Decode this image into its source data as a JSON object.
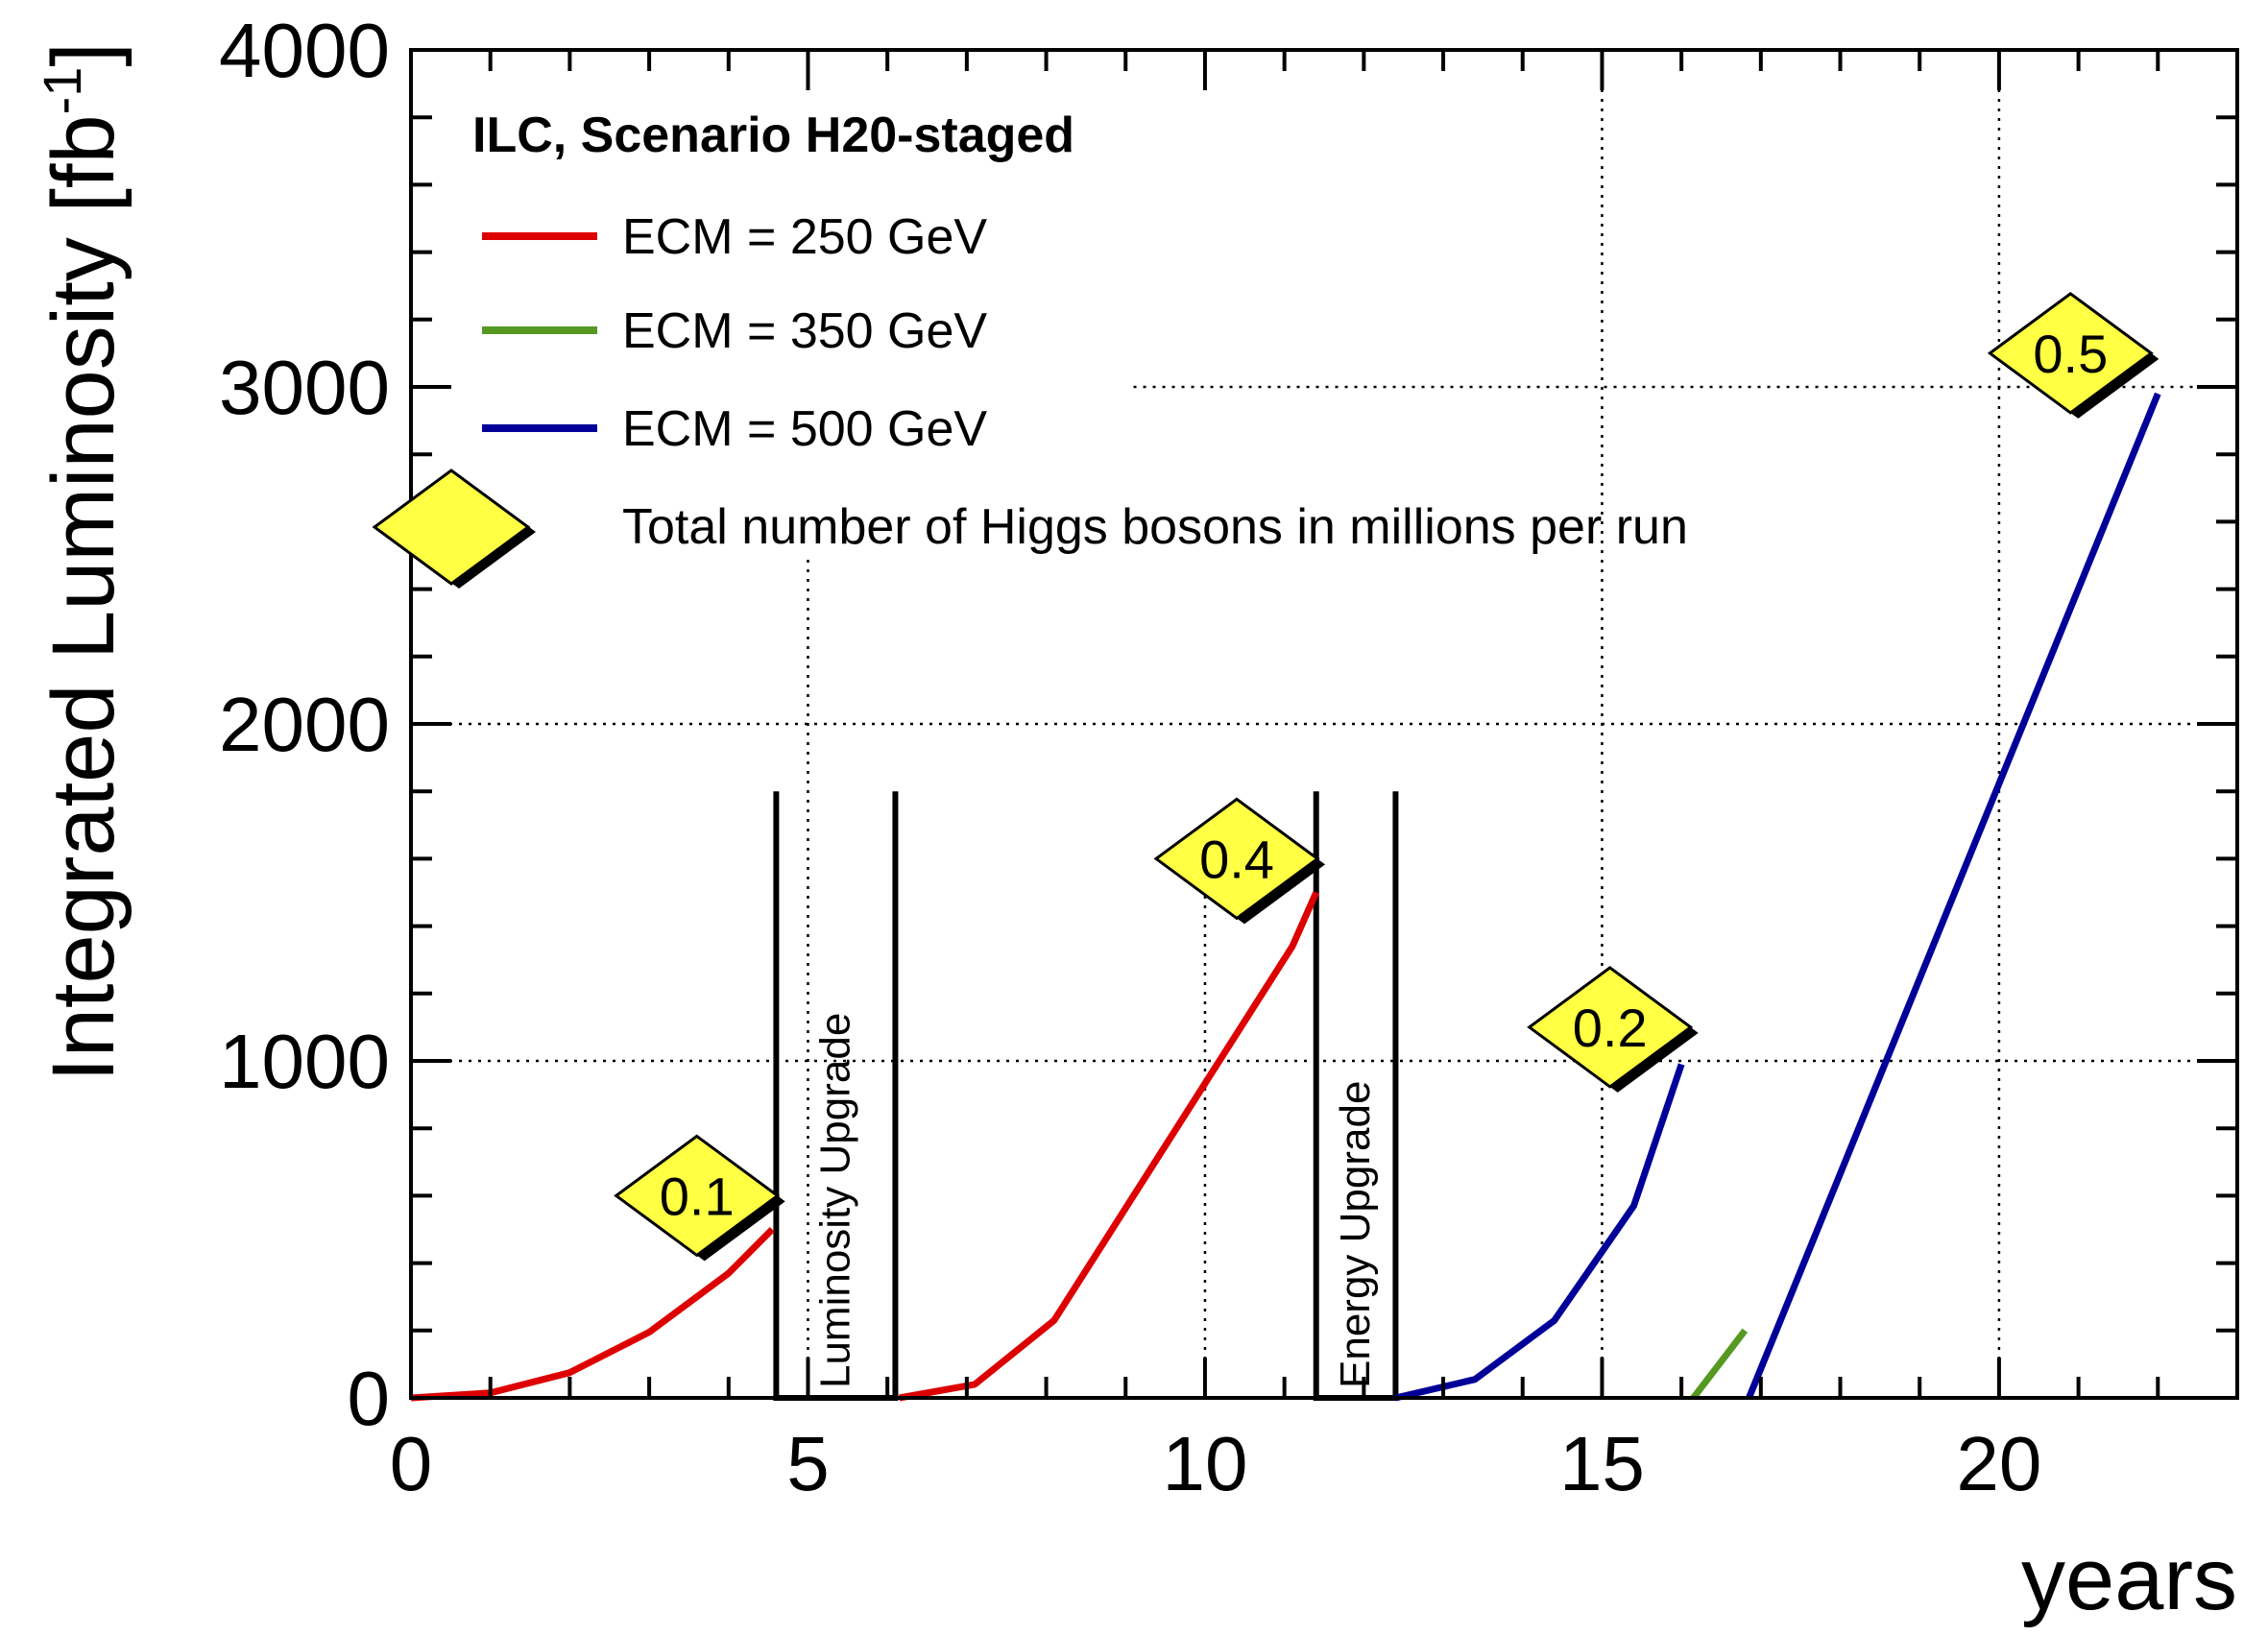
{
  "chart_data": {
    "type": "line",
    "legend": {
      "title": "ILC, Scenario H20-staged",
      "entries": [
        {
          "label": "ECM = 250 GeV",
          "color": "#dd0000"
        },
        {
          "label": "ECM = 350 GeV",
          "color": "#559922"
        },
        {
          "label": "ECM = 500 GeV",
          "color": "#000099"
        }
      ],
      "marker_label": "Total number of Higgs bosons in millions per run",
      "placement": "top-left"
    },
    "xlabel": "years",
    "ylabel": "Integrated Luminosity",
    "ylabel_unit": "[fb",
    "ylabel_unit_exp": "-1",
    "ylabel_unit_close": "]",
    "xlim": [
      0,
      23
    ],
    "ylim": [
      0,
      4000
    ],
    "x_ticks": [
      "0",
      "5",
      "10",
      "15",
      "20"
    ],
    "y_ticks": [
      "0",
      "1000",
      "2000",
      "3000",
      "4000"
    ],
    "grid": "dotted",
    "series": [
      {
        "name": "ECM = 250 GeV",
        "color": "#dd0000",
        "x": [
          0,
          1,
          2,
          3,
          4,
          4.55
        ],
        "y": [
          0,
          15,
          75,
          195,
          370,
          500
        ]
      },
      {
        "name": "ECM = 250 GeV",
        "color": "#dd0000",
        "x": [
          6.15,
          7.1,
          8.1,
          9.1,
          10.1,
          11.1,
          11.4
        ],
        "y": [
          0,
          40,
          230,
          600,
          970,
          1340,
          1500
        ]
      },
      {
        "name": "ECM = 500 GeV",
        "color": "#000099",
        "x": [
          12.4,
          13.4,
          14.4,
          15.4,
          16.0
        ],
        "y": [
          0,
          55,
          230,
          570,
          990
        ]
      },
      {
        "name": "ECM = 350 GeV",
        "color": "#559922",
        "x": [
          16.15,
          16.8
        ],
        "y": [
          0,
          200
        ]
      },
      {
        "name": "ECM = 500 GeV",
        "color": "#000099",
        "x": [
          16.85,
          22.0
        ],
        "y": [
          0,
          2980
        ]
      }
    ],
    "annotations": [
      {
        "text": "0.1",
        "x": 3.6,
        "y": 600
      },
      {
        "text": "0.4",
        "x": 10.4,
        "y": 1600
      },
      {
        "text": "0.2",
        "x": 15.1,
        "y": 1100
      },
      {
        "text": "0.5",
        "x": 20.9,
        "y": 3100
      }
    ],
    "upgrades": [
      {
        "label": "Luminosity Upgrade",
        "x_start": 4.6,
        "x_end": 6.1,
        "y_top": 1800
      },
      {
        "label": "Energy Upgrade",
        "x_start": 11.4,
        "x_end": 12.4,
        "y_top": 1800
      }
    ],
    "grid_segments": [
      {
        "axis": "v",
        "value": 5,
        "from": 0,
        "to": 2500
      },
      {
        "axis": "v",
        "value": 10,
        "from": 0,
        "to": 1700
      },
      {
        "axis": "v",
        "value": 15,
        "from": 0,
        "to": 4000
      },
      {
        "axis": "v",
        "value": 20,
        "from": 0,
        "to": 4000
      },
      {
        "axis": "h",
        "value": 1000,
        "from": 0,
        "to": 23
      },
      {
        "axis": "h",
        "value": 2000,
        "from": 0,
        "to": 23
      },
      {
        "axis": "h",
        "value": 3000,
        "from": 9.1,
        "to": 23
      },
      {
        "axis": "h",
        "value": 4000,
        "from": 10.3,
        "to": 23
      }
    ]
  }
}
